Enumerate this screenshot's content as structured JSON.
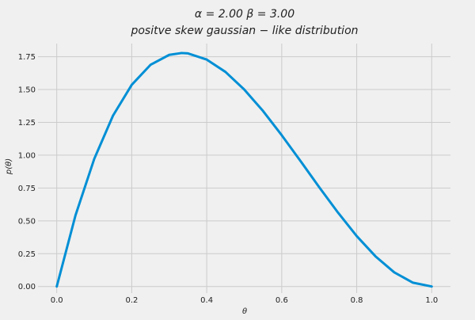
{
  "chart_data": {
    "type": "line",
    "title": "α = 2.00    β = 3.00",
    "subtitle": "positve  skew  gaussian − like   distribution",
    "xlabel": "θ",
    "ylabel": "p(θ)",
    "xlim": [
      -0.05,
      1.05
    ],
    "ylim": [
      -0.05,
      1.85
    ],
    "x_ticks": [
      0.0,
      0.2,
      0.4,
      0.6,
      0.8,
      1.0
    ],
    "x_tick_labels": [
      "0.0",
      "0.2",
      "0.4",
      "0.6",
      "0.8",
      "1.0"
    ],
    "y_ticks": [
      0.0,
      0.25,
      0.5,
      0.75,
      1.0,
      1.25,
      1.5,
      1.75
    ],
    "y_tick_labels": [
      "0.00",
      "0.25",
      "0.50",
      "0.75",
      "1.00",
      "1.25",
      "1.50",
      "1.75"
    ],
    "grid": true,
    "series": [
      {
        "color": "#008fd5",
        "x": [
          0.0,
          0.05,
          0.1,
          0.15,
          0.2,
          0.25,
          0.3,
          0.333,
          0.35,
          0.4,
          0.45,
          0.5,
          0.55,
          0.6,
          0.65,
          0.7,
          0.75,
          0.8,
          0.85,
          0.9,
          0.95,
          1.0
        ],
        "y": [
          0.0,
          0.542,
          0.972,
          1.301,
          1.536,
          1.688,
          1.764,
          1.778,
          1.775,
          1.728,
          1.634,
          1.5,
          1.337,
          1.152,
          0.956,
          0.756,
          0.563,
          0.384,
          0.23,
          0.108,
          0.029,
          0.0
        ]
      }
    ]
  }
}
